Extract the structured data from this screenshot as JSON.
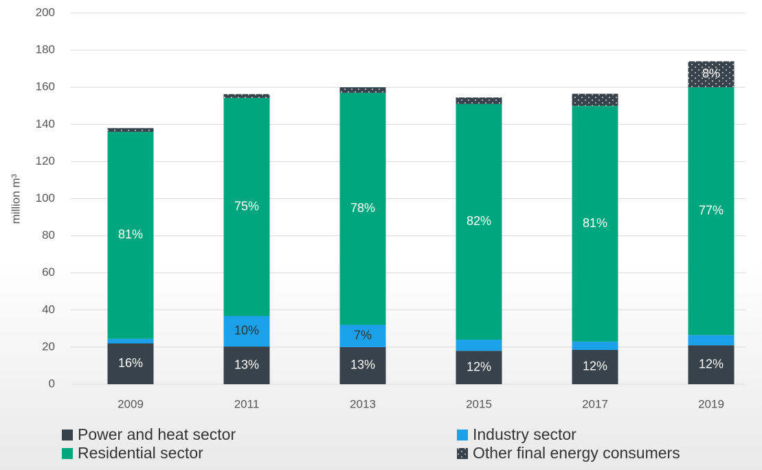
{
  "chart_data": {
    "type": "stacked_bar",
    "y_label": "million m³",
    "categories": [
      "2009",
      "2011",
      "2013",
      "2015",
      "2017",
      "2019"
    ],
    "series": [
      {
        "name": "Power and heat sector",
        "color": "#37424a",
        "label_color": "#ffffff",
        "values": [
          22,
          20.3,
          20,
          18,
          18.5,
          21
        ],
        "share_labels": [
          "16%",
          "13%",
          "13%",
          "12%",
          "12%",
          "12%"
        ]
      },
      {
        "name": "Industry sector",
        "color": "#1ba1ea",
        "label_color": "#333333",
        "values": [
          2.5,
          16.5,
          12,
          6,
          4.5,
          5.5
        ],
        "share_labels": [
          null,
          "10%",
          "7%",
          null,
          null,
          null
        ]
      },
      {
        "name": "Residential sector",
        "color": "#00a67e",
        "label_color": "#ffffff",
        "values": [
          111.5,
          117.5,
          125,
          127,
          127,
          133.5
        ],
        "share_labels": [
          "81%",
          "75%",
          "78%",
          "82%",
          "81%",
          "77%"
        ]
      },
      {
        "name": "Other final energy consumers",
        "color": "#37424a",
        "pattern": "dots",
        "label_color": "#ffffff",
        "values": [
          2,
          2,
          3,
          3.5,
          6.5,
          14
        ],
        "share_labels": [
          null,
          null,
          null,
          null,
          null,
          "8%"
        ]
      }
    ],
    "ylim": [
      0,
      200
    ],
    "yticks": [
      0,
      20,
      40,
      60,
      80,
      100,
      120,
      140,
      160,
      180,
      200
    ],
    "grid": true,
    "legend": "bottom"
  }
}
